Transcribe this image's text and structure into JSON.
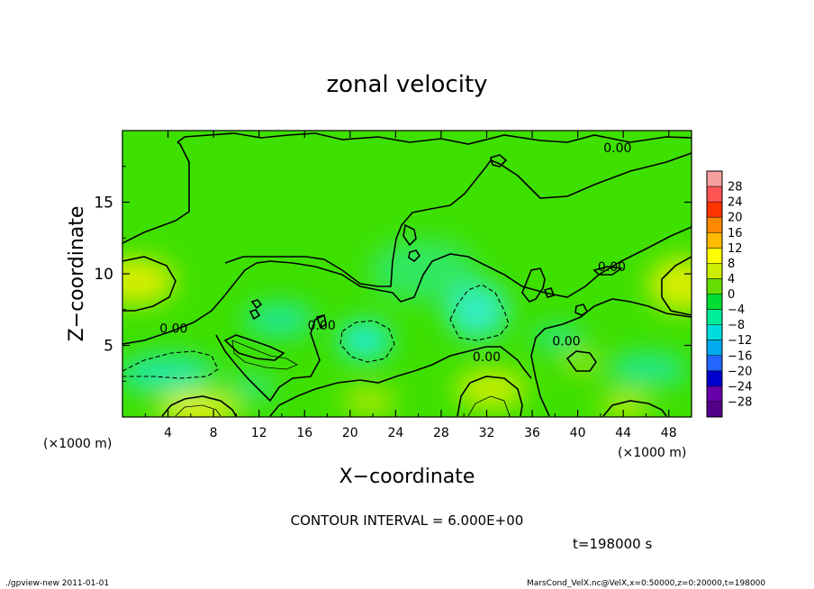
{
  "chart_data": {
    "type": "heatmap",
    "title": "zonal velocity",
    "xlabel": "X−coordinate",
    "ylabel": "Z−coordinate",
    "x_unit_label": "(×1000 m)",
    "y_unit_label": "(×1000 m)",
    "xlim": [
      0,
      50
    ],
    "ylim": [
      0,
      20
    ],
    "x_ticks": [
      4,
      8,
      12,
      16,
      20,
      24,
      28,
      32,
      36,
      40,
      44,
      48
    ],
    "y_ticks": [
      5,
      10,
      15
    ],
    "colorbar": {
      "levels": [
        "28",
        "24",
        "20",
        "16",
        "12",
        "8",
        "4",
        "0",
        "−4",
        "−8",
        "−12",
        "−16",
        "−20",
        "−24",
        "−28"
      ],
      "colors": [
        "#f7a0a0",
        "#ff5555",
        "#ff3300",
        "#ff8800",
        "#ffbb00",
        "#ffff00",
        "#ccee00",
        "#66dd00",
        "#00dd33",
        "#00ee99",
        "#00dddd",
        "#00aaee",
        "#2266ff",
        "#0000cc",
        "#6600aa",
        "#550088"
      ]
    },
    "contour_labels": [
      {
        "text": "0.00",
        "x": 43.5,
        "z": 18.8
      },
      {
        "text": "0.00",
        "x": 43,
        "z": 10.5
      },
      {
        "text": "0.00",
        "x": 4.5,
        "z": 6.2
      },
      {
        "text": "0.00",
        "x": 17.5,
        "z": 6.4
      },
      {
        "text": "0.00",
        "x": 39,
        "z": 5.3
      },
      {
        "text": "0.00",
        "x": 32,
        "z": 4.2
      }
    ],
    "contour_interval_text": "CONTOUR INTERVAL = 6.000E+00",
    "time_text": "t=198000 s"
  },
  "footer": {
    "left": "./gpview-new  2011-01-01",
    "right": "MarsCond_VelX.nc@VelX,x=0:50000,z=0:20000,t=198000"
  }
}
